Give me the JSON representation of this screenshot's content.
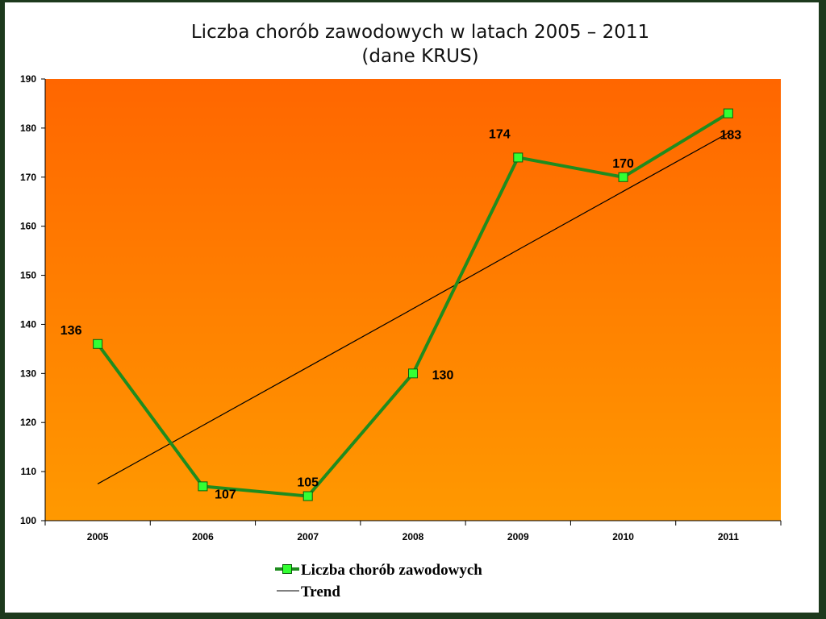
{
  "chart_data": {
    "type": "line",
    "title": "Liczba chorób zawodowych w latach 2005 – 2011",
    "subtitle": "(dane KRUS)",
    "xlabel": "",
    "ylabel": "",
    "x": [
      "2005",
      "2006",
      "2007",
      "2008",
      "2009",
      "2010",
      "2011"
    ],
    "ylim": [
      100,
      190
    ],
    "yticks": [
      "100",
      "110",
      "120",
      "130",
      "140",
      "150",
      "160",
      "170",
      "180",
      "190"
    ],
    "grid": false,
    "legend_position": "bottom",
    "series": [
      {
        "name": "Liczba chorób zawodowych",
        "values": [
          136,
          107,
          105,
          130,
          174,
          170,
          183
        ],
        "labels": [
          "136",
          "107",
          "105",
          "130",
          "174",
          "170",
          "183"
        ],
        "color": "#1e8c1e",
        "marker_color": "#33ff33"
      },
      {
        "name": "Trend",
        "values": [
          107.5,
          119.4,
          131.3,
          143.2,
          155.2,
          167.1,
          179.0
        ],
        "color": "#000000"
      }
    ],
    "plot_background": [
      "#ff6600",
      "#ff9900"
    ]
  }
}
